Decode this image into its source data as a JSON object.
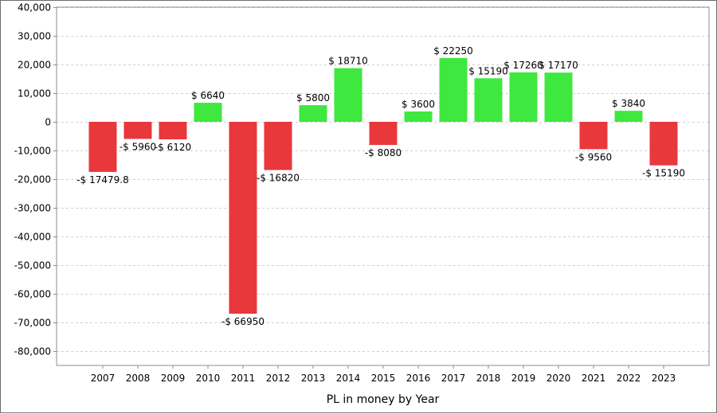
{
  "chart_data": {
    "type": "bar",
    "title": "",
    "xlabel": "PL in money by Year",
    "ylabel": "",
    "ylim": [
      -85000,
      40000
    ],
    "yticks": [
      40000,
      30000,
      20000,
      10000,
      0,
      -10000,
      -20000,
      -30000,
      -40000,
      -50000,
      -60000,
      -70000,
      -80000
    ],
    "ytick_labels": [
      "40,000",
      "30,000",
      "20,000",
      "10,000",
      "0",
      "-10,000",
      "-20,000",
      "-30,000",
      "-40,000",
      "-50,000",
      "-60,000",
      "-70,000",
      "-80,000"
    ],
    "categories": [
      "2007",
      "2008",
      "2009",
      "2010",
      "2011",
      "2012",
      "2013",
      "2014",
      "2015",
      "2016",
      "2017",
      "2018",
      "2019",
      "2020",
      "2021",
      "2022",
      "2023"
    ],
    "values": [
      -17479.8,
      -5960,
      -6120,
      6640,
      -66950,
      -16820,
      5800,
      18710,
      -8080,
      3600,
      22250,
      15190,
      17260,
      17170,
      -9560,
      3840,
      -15190
    ],
    "data_labels": [
      "-$ 17479.8",
      "-$ 5960",
      "-$ 6120",
      "$ 6640",
      "-$ 66950",
      "-$ 16820",
      "$ 5800",
      "$ 18710",
      "-$ 8080",
      "$ 3600",
      "$ 22250",
      "$ 15190",
      "$ 17260",
      "$ 17170",
      "-$ 9560",
      "$ 3840",
      "-$ 15190"
    ],
    "grid": true,
    "colors": {
      "positive": "#3ee83e",
      "negative": "#e8383c",
      "grid": "#d0d0d0",
      "axis": "#8c8c8c"
    }
  }
}
